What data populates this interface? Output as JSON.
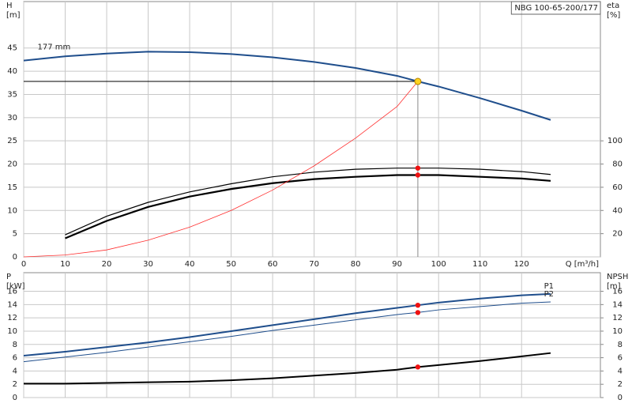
{
  "chart_data": [
    {
      "type": "line",
      "badge": "NBG 100-65-200/177",
      "y_label": "H",
      "y_unit": "[m]",
      "y2_label": "eta",
      "y2_unit": "[%]",
      "x_label": "Q [m³/h]",
      "xlim": [
        0,
        139
      ],
      "xticks": [
        0,
        10,
        20,
        30,
        40,
        50,
        60,
        70,
        80,
        90,
        100,
        110,
        120
      ],
      "ylim": [
        0,
        55
      ],
      "yticks": [
        0,
        5,
        10,
        15,
        20,
        25,
        30,
        35,
        40,
        45
      ],
      "y2lim": [
        0,
        220
      ],
      "y2ticks": [
        20,
        40,
        60,
        80,
        100
      ],
      "grid": true,
      "xtick_labels": true,
      "series_label_position": "start",
      "duty_lines": true,
      "series": [
        {
          "name": "177 mm",
          "color": "#1f4e8c",
          "width": 2,
          "x": [
            0,
            10,
            20,
            30,
            40,
            50,
            60,
            70,
            80,
            90,
            95,
            100,
            110,
            120,
            127
          ],
          "values": [
            42.3,
            43.2,
            43.8,
            44.2,
            44.1,
            43.7,
            43.0,
            42.0,
            40.7,
            39.0,
            37.8,
            36.7,
            34.2,
            31.5,
            29.5
          ]
        },
        {
          "color": "#000000",
          "width": 1.2,
          "axis": "y2",
          "x": [
            10,
            20,
            30,
            40,
            50,
            60,
            70,
            80,
            90,
            95,
            100,
            110,
            120,
            127
          ],
          "values": [
            19,
            35,
            47,
            56,
            63,
            69,
            73,
            75.5,
            76.5,
            76.5,
            76.5,
            75.5,
            73.5,
            71
          ]
        },
        {
          "color": "#000000",
          "width": 2.2,
          "axis": "y2",
          "x": [
            10,
            20,
            30,
            40,
            50,
            60,
            70,
            80,
            90,
            95,
            100,
            110,
            120,
            127
          ],
          "values": [
            16,
            31,
            43,
            52,
            58.5,
            63.5,
            67,
            69,
            70.5,
            70.5,
            70.5,
            69,
            67.5,
            65.5
          ]
        },
        {
          "color": "#ff3030",
          "width": 0.8,
          "x": [
            0,
            10,
            20,
            30,
            40,
            50,
            60,
            70,
            80,
            90,
            95
          ],
          "values": [
            0,
            0.4,
            1.5,
            3.6,
            6.4,
            10,
            14.4,
            19.6,
            25.6,
            32.4,
            37.8
          ]
        }
      ],
      "markers": [
        {
          "x": 95,
          "y": 37.8,
          "color": "#ffd21f"
        },
        {
          "x": 95,
          "y": 76.5,
          "axis": "y2",
          "color": "#ee1111"
        },
        {
          "x": 95,
          "y": 70.5,
          "axis": "y2",
          "color": "#ee1111"
        }
      ]
    },
    {
      "type": "line",
      "y_label": "P",
      "y_unit": "[kW]",
      "y2_label": "NPSH",
      "y2_unit": "[m]",
      "xlim": [
        0,
        139
      ],
      "xticks": [
        0,
        10,
        20,
        30,
        40,
        50,
        60,
        70,
        80,
        90,
        100,
        110,
        120
      ],
      "ylim": [
        0,
        18.8
      ],
      "yticks": [
        0,
        2,
        4,
        6,
        8,
        10,
        12,
        14,
        16
      ],
      "y2lim": [
        0,
        18.8
      ],
      "y2ticks": [
        0,
        2,
        4,
        6,
        8,
        10,
        12,
        14,
        16
      ],
      "grid": true,
      "xtick_labels": false,
      "series_label_position": "end",
      "duty_lines": false,
      "series": [
        {
          "name": "P1",
          "color": "#1f4e8c",
          "width": 2,
          "x": [
            0,
            10,
            20,
            30,
            40,
            50,
            60,
            70,
            80,
            90,
            95,
            100,
            110,
            120,
            127
          ],
          "values": [
            6.3,
            6.9,
            7.6,
            8.3,
            9.1,
            10.0,
            10.9,
            11.8,
            12.7,
            13.5,
            13.9,
            14.3,
            14.9,
            15.4,
            15.6
          ]
        },
        {
          "name": "P2",
          "color": "#1f4e8c",
          "width": 1,
          "x": [
            0,
            10,
            20,
            30,
            40,
            50,
            60,
            70,
            80,
            90,
            95,
            100,
            110,
            120,
            127
          ],
          "values": [
            5.4,
            6.1,
            6.8,
            7.6,
            8.4,
            9.2,
            10.1,
            10.9,
            11.7,
            12.5,
            12.8,
            13.2,
            13.7,
            14.2,
            14.4
          ]
        },
        {
          "color": "#000000",
          "width": 2,
          "axis": "y2",
          "x": [
            0,
            10,
            20,
            30,
            40,
            50,
            60,
            70,
            80,
            90,
            95,
            100,
            110,
            120,
            127
          ],
          "values": [
            2.1,
            2.1,
            2.2,
            2.3,
            2.4,
            2.6,
            2.9,
            3.3,
            3.7,
            4.2,
            4.6,
            4.9,
            5.5,
            6.2,
            6.7
          ]
        }
      ],
      "markers": [
        {
          "x": 95,
          "y": 13.9,
          "color": "#ee1111"
        },
        {
          "x": 95,
          "y": 12.8,
          "color": "#ee1111"
        },
        {
          "x": 95,
          "y": 4.6,
          "axis": "y2",
          "color": "#ee1111"
        }
      ]
    }
  ]
}
